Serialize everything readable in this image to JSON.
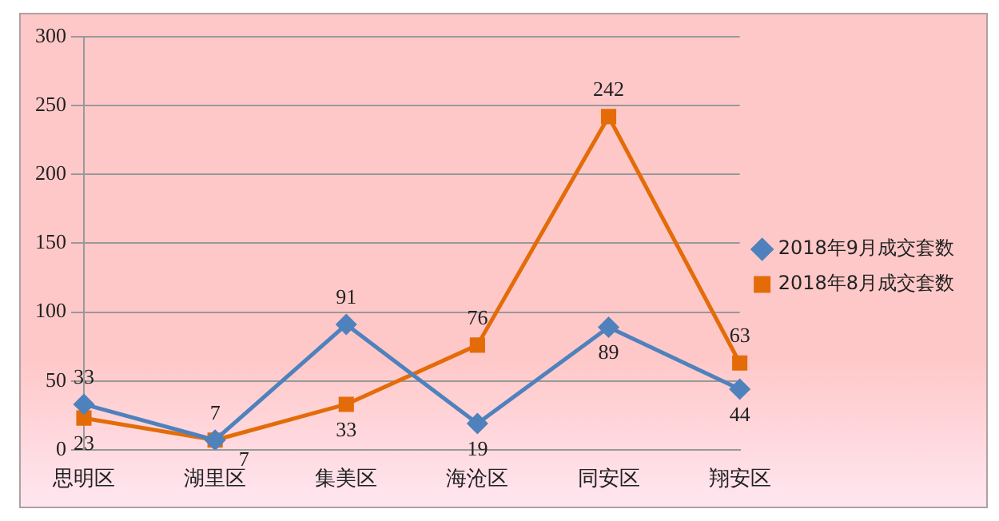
{
  "chart_data": {
    "type": "line",
    "categories": [
      "思明区",
      "湖里区",
      "集美区",
      "海沧区",
      "同安区",
      "翔安区"
    ],
    "series": [
      {
        "name": "2018年9月成交套数",
        "color": "#4f81bd",
        "marker": "diamond",
        "values": [
          33,
          7,
          91,
          19,
          89,
          44
        ]
      },
      {
        "name": "2018年8月成交套数",
        "color": "#e36c09",
        "marker": "square",
        "values": [
          23,
          7,
          33,
          76,
          242,
          63
        ]
      }
    ],
    "ylim": [
      0,
      300
    ],
    "yticks": [
      0,
      50,
      100,
      150,
      200,
      250,
      300
    ],
    "grid": "y",
    "legend": "right",
    "data_labels": true,
    "line_style": "solid"
  }
}
